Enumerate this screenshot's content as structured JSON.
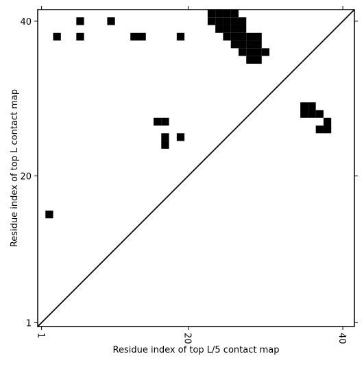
{
  "chart_data": {
    "type": "contact_map",
    "x_label": "Residue index of top L/5 contact map",
    "y_label": "Residue index of top L contact map",
    "xlim": [
      0.5,
      41.5
    ],
    "ylim": [
      0.5,
      41.5
    ],
    "xticks": [
      1,
      20,
      40
    ],
    "yticks": [
      1,
      20,
      40
    ],
    "color": "#000000",
    "diagonal": true,
    "x": [
      6,
      10,
      3,
      6,
      13,
      14,
      19,
      2,
      16,
      17,
      17,
      17,
      19,
      23,
      24,
      25,
      26,
      23,
      24,
      25,
      26,
      27,
      24,
      25,
      26,
      27,
      25,
      26,
      27,
      28,
      29,
      26,
      27,
      28,
      29,
      27,
      28,
      29,
      30,
      28,
      29,
      35,
      36,
      35,
      36,
      37,
      38,
      37,
      38
    ],
    "y": [
      40,
      40,
      38,
      38,
      38,
      38,
      38,
      15,
      27,
      27,
      25,
      24,
      25,
      41,
      41,
      41,
      41,
      40,
      40,
      40,
      40,
      40,
      39,
      39,
      39,
      39,
      38,
      38,
      38,
      38,
      38,
      37,
      37,
      37,
      37,
      36,
      36,
      36,
      36,
      35,
      35,
      29,
      29,
      28,
      28,
      28,
      27,
      26,
      26
    ]
  }
}
